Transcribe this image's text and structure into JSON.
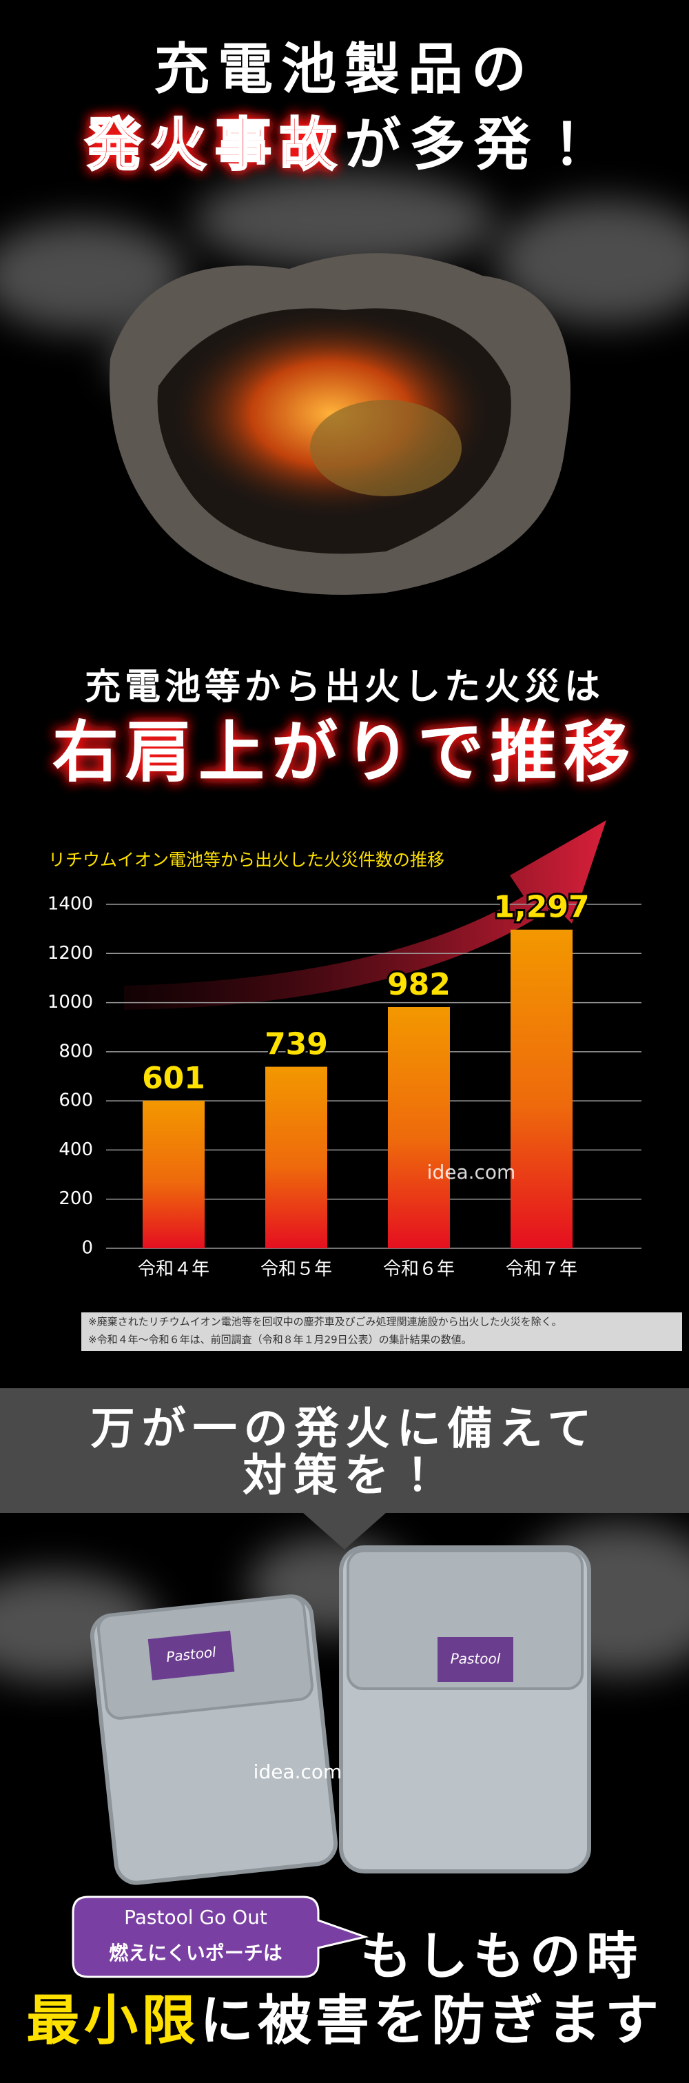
{
  "watermark": "idea.com",
  "header": {
    "line1": "充電池製品の",
    "line2_highlight": "発火事故",
    "line2_rest": "が多発！"
  },
  "trend": {
    "lead": "充電池等から出火した火災は",
    "headline": "右肩上がりで推移"
  },
  "chart_data": {
    "type": "bar",
    "title": "リチウムイオン電池等から出火した火災件数の推移",
    "categories": [
      "令和４年",
      "令和５年",
      "令和６年",
      "令和７年"
    ],
    "values": [
      601,
      739,
      982,
      1297
    ],
    "value_labels": [
      "601",
      "739",
      "982",
      "1,297"
    ],
    "color": "#f39800",
    "ylim": [
      0,
      1400
    ],
    "yticks": [
      0,
      200,
      400,
      600,
      800,
      1000,
      1200,
      1400
    ],
    "grid": true,
    "footnotes": [
      "※廃棄されたリチウムイオン電池等を回収中の塵芥車及びごみ処理関連施設から出火した火災を除く。",
      "※令和４年〜令和６年は、前回調査（令和８年１月29日公表）の集計結果の数値。"
    ]
  },
  "banner": {
    "line1": "万が一の発火に備えて",
    "line2": "対策を！"
  },
  "product": {
    "brand_label": "Pastool"
  },
  "callout": {
    "line1": "Pastool Go Out",
    "line2": "燃えにくいポーチは"
  },
  "closing": {
    "line1": "もしもの時",
    "highlight": "最小限",
    "rest": "に被害を防ぎます"
  }
}
